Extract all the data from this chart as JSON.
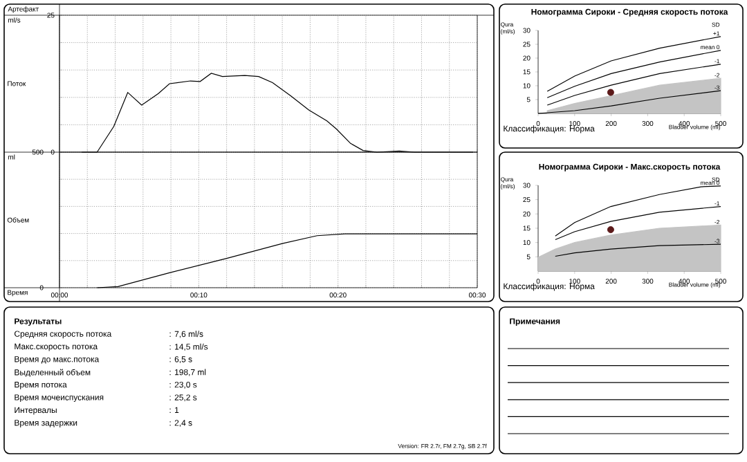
{
  "chart_data": [
    {
      "type": "line",
      "ylabel": "Поток",
      "annotations": [
        "Артефакт",
        "ml/s"
      ],
      "color": "#000000",
      "x": [
        1.6,
        2.7,
        3.9,
        4.9,
        5.9,
        7.1,
        7.9,
        9.4,
        10.1,
        10.9,
        11.7,
        13.3,
        14.3,
        15.3,
        16.6,
        17.9,
        19.2,
        19.9,
        20.9,
        21.8,
        22.8,
        24.4,
        25.5,
        28.4,
        29.7
      ],
      "values": [
        0,
        0,
        4.7,
        10.9,
        8.6,
        10.7,
        12.5,
        13.0,
        12.9,
        14.4,
        13.8,
        14.0,
        13.8,
        12.7,
        10.3,
        7.7,
        5.7,
        4.2,
        1.6,
        0.3,
        0,
        0.2,
        0,
        0,
        0
      ],
      "xlim": [
        0,
        30
      ],
      "ylim": [
        0,
        25
      ],
      "xticks": [
        {
          "value": 0,
          "label": null
        },
        {
          "value": 2,
          "label": null
        },
        {
          "value": 4,
          "label": null
        },
        {
          "value": 6,
          "label": null
        },
        {
          "value": 8,
          "label": null
        },
        {
          "value": 10,
          "label": null
        },
        {
          "value": 12,
          "label": null
        },
        {
          "value": 14,
          "label": null
        },
        {
          "value": 16,
          "label": null
        },
        {
          "value": 18,
          "label": null
        },
        {
          "value": 20,
          "label": null
        },
        {
          "value": 22,
          "label": null
        },
        {
          "value": 24,
          "label": null
        },
        {
          "value": 26,
          "label": null
        },
        {
          "value": 28,
          "label": null
        },
        {
          "value": 30,
          "label": null
        }
      ],
      "yticks": [
        0,
        {
          "value": 5,
          "label": null
        },
        {
          "value": 10,
          "label": null
        },
        {
          "value": 15,
          "label": null
        },
        {
          "value": 20,
          "label": null
        },
        25
      ],
      "grid": true,
      "tick_labels": "y"
    },
    {
      "type": "line",
      "ylabel": "Объем",
      "xlabel": "Время",
      "annotations": [
        "ml"
      ],
      "color": "#000000",
      "x": [
        2.7,
        4.2,
        7.9,
        12.0,
        16.0,
        18.5,
        20.5,
        22.0,
        30
      ],
      "values": [
        0,
        4,
        55,
        108,
        163,
        192,
        198.7,
        198.7,
        198.7
      ],
      "xlim": [
        0,
        30
      ],
      "ylim": [
        0,
        500
      ],
      "xticks": [
        {
          "value": 0,
          "label": "00:00"
        },
        {
          "value": 2,
          "label": null
        },
        {
          "value": 4,
          "label": null
        },
        {
          "value": 6,
          "label": null
        },
        {
          "value": 8,
          "label": null
        },
        {
          "value": 10,
          "label": "00:10"
        },
        {
          "value": 12,
          "label": null
        },
        {
          "value": 14,
          "label": null
        },
        {
          "value": 16,
          "label": null
        },
        {
          "value": 18,
          "label": null
        },
        {
          "value": 20,
          "label": "00:20"
        },
        {
          "value": 22,
          "label": null
        },
        {
          "value": 24,
          "label": null
        },
        {
          "value": 26,
          "label": null
        },
        {
          "value": 28,
          "label": null
        },
        {
          "value": 30,
          "label": "00:30"
        }
      ],
      "yticks": [
        0,
        {
          "value": 100,
          "label": null
        },
        {
          "value": 200,
          "label": null
        },
        {
          "value": 300,
          "label": null
        },
        {
          "value": 400,
          "label": null
        },
        500
      ],
      "grid": true
    },
    {
      "type": "line",
      "title": "Номограмма Сироки - Средняя скорость потока",
      "xlabel": "Bladder volume (ml)",
      "ylabel": "Qura (ml/s)",
      "legend_title": "SD",
      "annotations": [
        "Классификация: Норма"
      ],
      "xlim": [
        0,
        500
      ],
      "ylim": [
        0,
        30
      ],
      "xticks": [
        0,
        100,
        200,
        300,
        400,
        500
      ],
      "yticks": [
        5,
        10,
        15,
        20,
        25,
        30
      ],
      "series": [
        {
          "name": "+1",
          "color": "#000000",
          "x": [
            25,
            100,
            200,
            333,
            500
          ],
          "values": [
            8.0,
            13.5,
            19.0,
            23.6,
            27.8
          ]
        },
        {
          "name": "mean 0",
          "color": "#000000",
          "x": [
            25,
            100,
            200,
            333,
            500
          ],
          "values": [
            5.7,
            9.8,
            14.4,
            18.6,
            22.8
          ]
        },
        {
          "name": "-1",
          "color": "#000000",
          "x": [
            25,
            100,
            200,
            333,
            500
          ],
          "values": [
            3.0,
            6.5,
            10.2,
            14.4,
            17.8
          ]
        },
        {
          "name": "-2",
          "type": "area",
          "color": "#c4c4c4",
          "x": [
            25,
            100,
            200,
            333,
            500
          ],
          "values": [
            1.0,
            3.6,
            6.4,
            10.2,
            12.7
          ]
        },
        {
          "name": "-3",
          "color": "#000000",
          "x": [
            0,
            100,
            200,
            333,
            500
          ],
          "values": [
            0,
            1.0,
            2.7,
            5.5,
            8.2
          ]
        },
        {
          "type": "scatter",
          "color": "#5c1a1a",
          "marker": "circle",
          "x": [
            198.7
          ],
          "values": [
            7.6
          ]
        }
      ]
    },
    {
      "type": "line",
      "title": "Номограмма Сироки - Макс.скорость потока",
      "xlabel": "Bladder volume (ml)",
      "ylabel": "Qura (ml/s)",
      "legend_title": "SD",
      "annotations": [
        "Классификация: Норма"
      ],
      "xlim": [
        0,
        500
      ],
      "ylim": [
        0,
        30
      ],
      "xticks": [
        0,
        100,
        200,
        300,
        400,
        500
      ],
      "yticks": [
        5,
        10,
        15,
        20,
        25,
        30
      ],
      "series": [
        {
          "name": "mean 0",
          "color": "#000000",
          "x": [
            47,
            100,
            199,
            332,
            446,
            500
          ],
          "values": [
            12.3,
            17.0,
            22.6,
            26.8,
            29.5,
            29.8
          ]
        },
        {
          "name": "-1",
          "color": "#000000",
          "x": [
            47,
            100,
            199,
            332,
            500
          ],
          "values": [
            11.0,
            13.8,
            17.4,
            20.6,
            22.6
          ]
        },
        {
          "name": "-2",
          "type": "area",
          "color": "#c4c4c4",
          "x": [
            0,
            47,
            100,
            199,
            332,
            500
          ],
          "values": [
            4.8,
            7.7,
            10.0,
            12.6,
            15.0,
            16.1
          ]
        },
        {
          "name": "-3",
          "color": "#000000",
          "x": [
            47,
            100,
            199,
            332,
            500
          ],
          "values": [
            5.2,
            6.4,
            7.7,
            8.9,
            9.4
          ]
        },
        {
          "type": "scatter",
          "color": "#5c1a1a",
          "marker": "circle",
          "x": [
            198.7
          ],
          "values": [
            14.5
          ]
        }
      ]
    },
    {
      "type": "other",
      "title": "Результаты",
      "annotations": [
        "Version: FR 2.7r, FM 2.7g, SB 2.7f"
      ],
      "categories": [
        "Средняя скорость потока",
        "Макс.скорость потока",
        "Время до макс.потока",
        "Выделенный объем",
        "Время потока",
        "Время мочеиспускания",
        "Интервалы",
        "Время задержки"
      ],
      "value_labels": [
        ": 7,6 ml/s",
        ": 14,5 ml/s",
        ": 6,5 s",
        ": 198,7 ml",
        ": 23,0 s",
        ": 25,2 s",
        ": 1",
        ": 2,4 s"
      ]
    },
    {
      "type": "other",
      "title": "Примечания"
    }
  ]
}
